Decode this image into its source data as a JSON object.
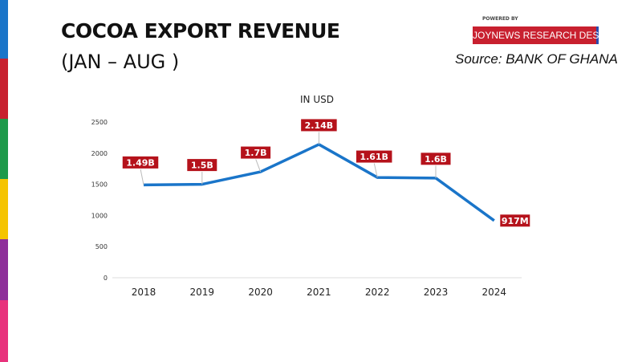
{
  "header": {
    "title": "COCOA EXPORT REVENUE",
    "subtitle": "(JAN – AUG )",
    "powered_by": "POWERED BY",
    "brand": "JOYNEWS RESEARCH DESK",
    "source": "Source: BANK OF GHANA"
  },
  "side_stripes": [
    "#1a75c9",
    "#c8202f",
    "#1e9a4a",
    "#f5c400",
    "#8e2f9a",
    "#e8327c"
  ],
  "chart_data": {
    "type": "line",
    "title": "IN USD",
    "categories": [
      "2018",
      "2019",
      "2020",
      "2021",
      "2022",
      "2023",
      "2024"
    ],
    "series": [
      {
        "values": [
          1490,
          1500,
          1700,
          2140,
          1610,
          1600,
          917
        ],
        "data_labels": [
          "1.49B",
          "1.5B",
          "1.7B",
          "2.14B",
          "1.61B",
          "1.6B",
          "917M"
        ],
        "color": "#1a75c9"
      }
    ],
    "yticks": [
      0,
      500,
      1000,
      1500,
      2000,
      2500
    ],
    "ylim": [
      0,
      2500
    ],
    "grid": false,
    "label_color": "#b5121b"
  }
}
